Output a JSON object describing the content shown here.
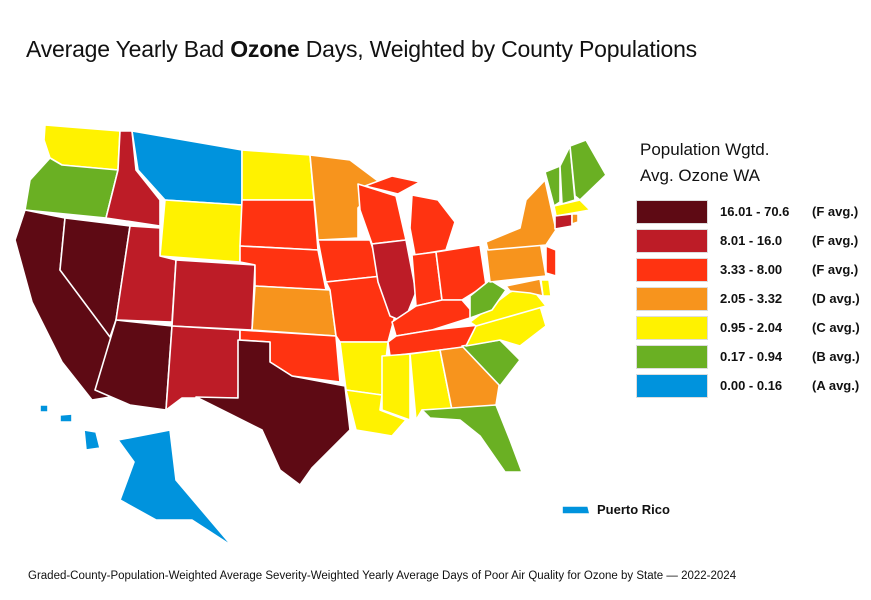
{
  "title": {
    "pre": "Average Yearly Bad ",
    "bold": "Ozone",
    "post": " Days, Weighted by County Populations"
  },
  "legend": {
    "title_line1": "Population Wgtd.",
    "title_line2": "Avg. Ozone WA",
    "items": [
      {
        "key": "F1",
        "range": "16.01 - 70.6",
        "grade": "(F avg.)",
        "color": "#5e0a14"
      },
      {
        "key": "F2",
        "range": "8.01 - 16.0",
        "grade": "(F avg.)",
        "color": "#bd1c27"
      },
      {
        "key": "F3",
        "range": "3.33 - 8.00",
        "grade": "(F avg.)",
        "color": "#ff3311"
      },
      {
        "key": "D",
        "range": "2.05 - 3.32",
        "grade": "(D avg.)",
        "color": "#f7941d"
      },
      {
        "key": "C",
        "range": "0.95 - 2.04",
        "grade": "(C avg.)",
        "color": "#fff200"
      },
      {
        "key": "B",
        "range": "0.17 - 0.94",
        "grade": "(B avg.)",
        "color": "#6ab023"
      },
      {
        "key": "A",
        "range": "0.00 - 0.16",
        "grade": "(A avg.)",
        "color": "#0093dd"
      }
    ]
  },
  "states": {
    "WA": "C",
    "OR": "B",
    "CA": "F1",
    "NV": "F1",
    "ID": "F2",
    "MT": "A",
    "WY": "C",
    "UT": "F2",
    "AZ": "F1",
    "CO": "F2",
    "NM": "F2",
    "ND": "C",
    "SD": "F3",
    "NE": "F3",
    "KS": "D",
    "OK": "F3",
    "TX": "F1",
    "MN": "D",
    "IA": "F3",
    "MO": "F3",
    "AR": "C",
    "LA": "C",
    "WI": "F3",
    "IL": "F2",
    "MI": "F3",
    "IN": "F3",
    "OH": "F3",
    "KY": "F3",
    "TN": "F3",
    "MS": "C",
    "AL": "C",
    "GA": "D",
    "FL": "B",
    "SC": "B",
    "NC": "C",
    "VA": "C",
    "WV": "B",
    "PA": "D",
    "NY": "D",
    "VT": "B",
    "NH": "B",
    "ME": "B",
    "MA": "C",
    "CT": "F2",
    "RI": "D",
    "NJ": "F3",
    "DE": "C",
    "MD": "D",
    "AK": "A",
    "HI": "A",
    "PR": "A"
  },
  "puerto_rico_label": "Puerto Rico",
  "footer": "Graded-County-Population-Weighted Average Severity-Weighted Yearly Average Days of Poor Air Quality for Ozone by State — 2022-2024"
}
